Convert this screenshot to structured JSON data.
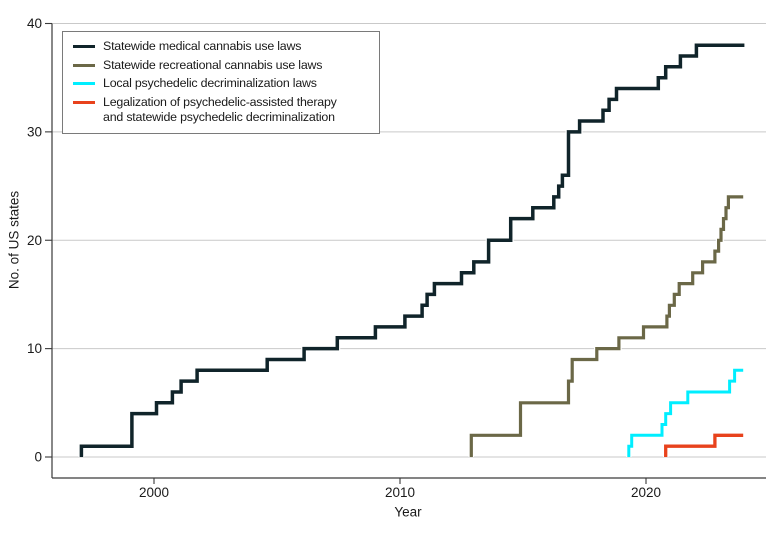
{
  "page": {
    "background": "#ffffff"
  },
  "legend": {
    "items": [
      {
        "label": "Statewide medical cannabis use laws"
      },
      {
        "label": "Statewide recreational cannabis use laws"
      },
      {
        "label": "Local psychedelic decriminalization laws"
      },
      {
        "label": "Legalization of psychedelic-assisted therapy",
        "label2": "and statewide psychedelic decriminalization"
      }
    ]
  },
  "chart_data": {
    "type": "line",
    "step": true,
    "title": "",
    "xlabel": "Year",
    "ylabel": "No. of US states",
    "xlim": [
      1996.5,
      2024.3
    ],
    "ylim": [
      0,
      40
    ],
    "x_ticks": [
      2000,
      2010,
      2020
    ],
    "y_ticks": [
      0,
      10,
      20,
      30,
      40
    ],
    "grid": "horizontal-gridlines",
    "gridline_color": "#c9c9c9",
    "axis_color": "#3a3a3a",
    "legend_position": "top-left",
    "series": [
      {
        "key": "medical-cannabis",
        "name": "Statewide medical cannabis use laws",
        "color": "#10242a",
        "start_value": 0,
        "end_year": 2024.0,
        "points": [
          [
            1997.05,
            1
          ],
          [
            1999.1,
            4
          ],
          [
            2000.1,
            5
          ],
          [
            2000.75,
            6
          ],
          [
            2001.1,
            7
          ],
          [
            2001.75,
            8
          ],
          [
            2004.6,
            9
          ],
          [
            2006.1,
            10
          ],
          [
            2007.45,
            11
          ],
          [
            2009.0,
            12
          ],
          [
            2010.2,
            13
          ],
          [
            2010.9,
            14
          ],
          [
            2011.1,
            15
          ],
          [
            2011.4,
            16
          ],
          [
            2012.5,
            17
          ],
          [
            2013.0,
            18
          ],
          [
            2013.6,
            20
          ],
          [
            2014.5,
            22
          ],
          [
            2015.4,
            23
          ],
          [
            2016.25,
            24
          ],
          [
            2016.45,
            25
          ],
          [
            2016.6,
            26
          ],
          [
            2016.85,
            30
          ],
          [
            2017.3,
            31
          ],
          [
            2018.25,
            32
          ],
          [
            2018.5,
            33
          ],
          [
            2018.8,
            34
          ],
          [
            2020.5,
            35
          ],
          [
            2020.8,
            36
          ],
          [
            2021.4,
            37
          ],
          [
            2022.05,
            38
          ]
        ]
      },
      {
        "key": "recreational-cannabis",
        "name": "Statewide recreational cannabis use laws",
        "color": "#6b6847",
        "start_value": 0,
        "end_year": 2023.95,
        "points": [
          [
            2012.9,
            2
          ],
          [
            2014.9,
            5
          ],
          [
            2016.85,
            7
          ],
          [
            2017.0,
            9
          ],
          [
            2018.0,
            10
          ],
          [
            2018.9,
            11
          ],
          [
            2019.9,
            12
          ],
          [
            2020.85,
            13
          ],
          [
            2020.95,
            14
          ],
          [
            2021.15,
            15
          ],
          [
            2021.35,
            16
          ],
          [
            2021.9,
            17
          ],
          [
            2022.3,
            18
          ],
          [
            2022.8,
            19
          ],
          [
            2022.95,
            20
          ],
          [
            2023.05,
            21
          ],
          [
            2023.15,
            22
          ],
          [
            2023.25,
            23
          ],
          [
            2023.35,
            24
          ]
        ]
      },
      {
        "key": "local-psychedelic-decriminalization",
        "name": "Local psychedelic decriminalization laws",
        "color": "#00eeff",
        "start_value": 0,
        "end_year": 2023.95,
        "points": [
          [
            2019.3,
            1
          ],
          [
            2019.42,
            2
          ],
          [
            2020.65,
            3
          ],
          [
            2020.8,
            4
          ],
          [
            2021.0,
            5
          ],
          [
            2021.7,
            6
          ],
          [
            2023.4,
            7
          ],
          [
            2023.6,
            8
          ]
        ]
      },
      {
        "key": "psychedelic-therapy-statewide-decriminalization",
        "name": "Legalization of psychedelic-assisted therapy and statewide psychedelic decriminalization",
        "color": "#e8421c",
        "start_value": 0,
        "end_year": 2023.95,
        "points": [
          [
            2020.8,
            1
          ],
          [
            2022.8,
            2
          ]
        ]
      }
    ]
  }
}
